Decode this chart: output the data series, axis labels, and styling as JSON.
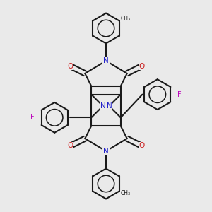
{
  "bg_color": "#eaeaea",
  "bond_color": "#1a1a1a",
  "N_color": "#2020cc",
  "O_color": "#cc2020",
  "F_color": "#bb00bb",
  "lw": 1.5,
  "figsize": [
    3.0,
    3.0
  ],
  "dpi": 100,
  "xlim": [
    0,
    10
  ],
  "ylim": [
    0,
    10
  ]
}
